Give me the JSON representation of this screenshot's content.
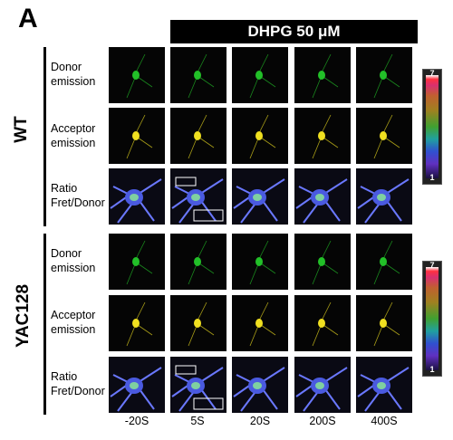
{
  "panel_letter": "A",
  "treatment_label": "DHPG 50 μM",
  "groups": [
    {
      "label": "WT"
    },
    {
      "label": "YAC128"
    }
  ],
  "row_labels": {
    "donor": [
      "Donor",
      "emission"
    ],
    "acceptor": [
      "Acceptor",
      "emission"
    ],
    "ratio": [
      "Ratio",
      "Fret/Donor"
    ]
  },
  "timepoints": [
    "-20S",
    "5S",
    "20S",
    "200S",
    "400S"
  ],
  "scale": {
    "max": "7",
    "min": "1"
  },
  "colors": {
    "donor": "#22c028",
    "acceptor": "#f0e020",
    "ratio_bg": "#0a0a14"
  }
}
